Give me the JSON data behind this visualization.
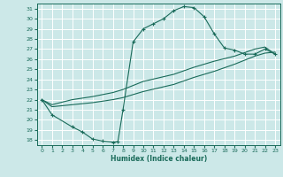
{
  "xlabel": "Humidex (Indice chaleur)",
  "bg_color": "#cce8e8",
  "grid_color": "#ffffff",
  "line_color": "#1a6b5a",
  "xlim": [
    -0.5,
    23.5
  ],
  "ylim": [
    17.5,
    31.5
  ],
  "xticks": [
    0,
    1,
    2,
    3,
    4,
    5,
    6,
    7,
    8,
    9,
    10,
    11,
    12,
    13,
    14,
    15,
    16,
    17,
    18,
    19,
    20,
    21,
    22,
    23
  ],
  "yticks": [
    18,
    19,
    20,
    21,
    22,
    23,
    24,
    25,
    26,
    27,
    28,
    29,
    30,
    31
  ],
  "curve1_x": [
    0,
    1,
    3,
    4,
    5,
    6,
    7,
    7.5,
    8,
    9,
    10,
    11,
    12,
    13,
    14,
    15,
    16,
    17,
    18,
    19,
    20,
    21,
    22,
    23
  ],
  "curve1_y": [
    22,
    20.5,
    19.3,
    18.8,
    18.1,
    17.9,
    17.8,
    17.85,
    21.0,
    27.7,
    29.0,
    29.5,
    30.0,
    30.8,
    31.2,
    31.1,
    30.2,
    28.5,
    27.1,
    26.9,
    26.5,
    26.5,
    27.0,
    26.5
  ],
  "curve2_x": [
    0,
    1,
    3,
    5,
    7,
    8,
    10,
    13,
    15,
    17,
    19,
    21,
    22,
    23
  ],
  "curve2_y": [
    22,
    21.3,
    21.5,
    21.7,
    22.0,
    22.2,
    22.8,
    23.5,
    24.2,
    24.8,
    25.5,
    26.3,
    26.6,
    26.7
  ],
  "curve3_x": [
    0,
    1,
    3,
    5,
    7,
    8,
    9,
    10,
    13,
    15,
    17,
    19,
    21,
    22,
    23
  ],
  "curve3_y": [
    22,
    21.5,
    22.0,
    22.3,
    22.7,
    23.0,
    23.4,
    23.8,
    24.5,
    25.2,
    25.8,
    26.3,
    27.0,
    27.2,
    26.5
  ]
}
